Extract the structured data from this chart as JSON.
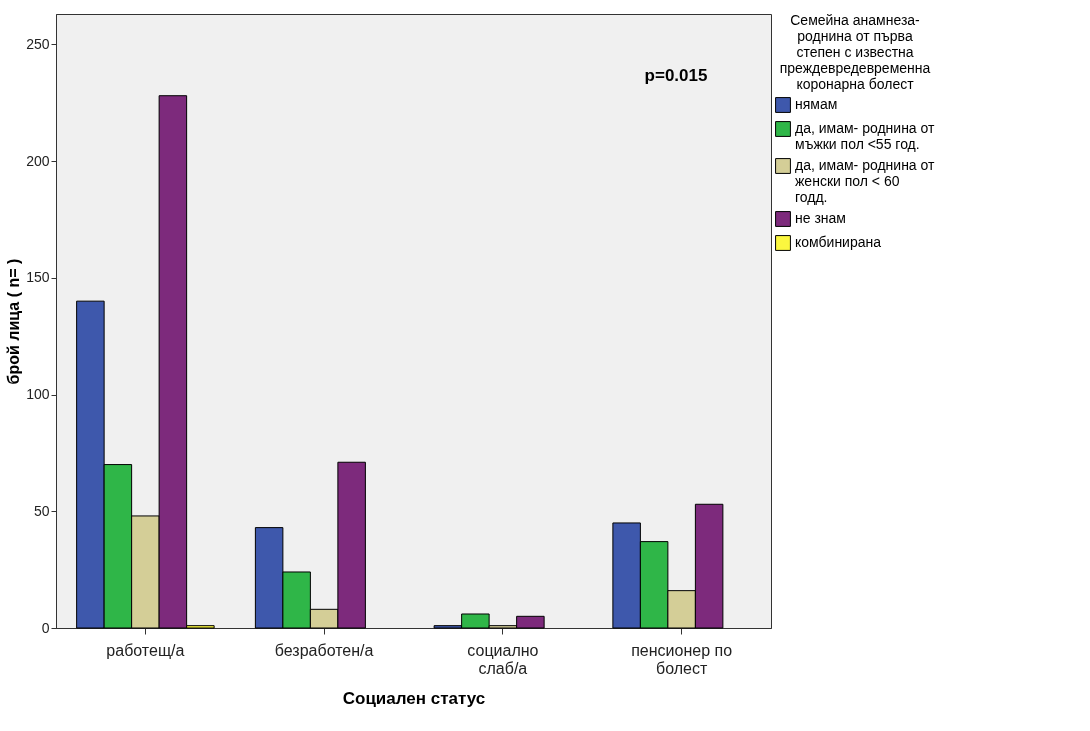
{
  "chart_data": {
    "type": "bar",
    "xlabel": "Социален статус",
    "ylabel": "брой лица ( n= )",
    "legend_title": "Семейна анамнеза-роднина от първа степен  с известна преждевредевременна коронарна болест",
    "categories": [
      "работещ/а",
      "безработен/а",
      "социално слаб/а",
      "пенсионер по болест"
    ],
    "series": [
      {
        "name": "нямам",
        "color": "#3e58ac",
        "values": [
          140,
          43,
          1,
          45
        ]
      },
      {
        "name": "да, имам- роднина от мъжки пол <55 год.",
        "color": "#2fb648",
        "values": [
          70,
          24,
          6,
          37
        ]
      },
      {
        "name": "да, имам- роднина от женски пол < 60 годд.",
        "color": "#d4ce97",
        "values": [
          48,
          8,
          1,
          16
        ]
      },
      {
        "name": "не знам",
        "color": "#7d2a7c",
        "values": [
          228,
          71,
          5,
          53
        ]
      },
      {
        "name": "комбинирана",
        "color": "#fbf73f",
        "values": [
          1,
          null,
          null,
          null
        ]
      }
    ],
    "ylim": [
      0,
      263
    ],
    "yticks": [
      0,
      50,
      100,
      150,
      200,
      250
    ],
    "legend": "right",
    "annotations": [
      "p=0.015"
    ]
  }
}
